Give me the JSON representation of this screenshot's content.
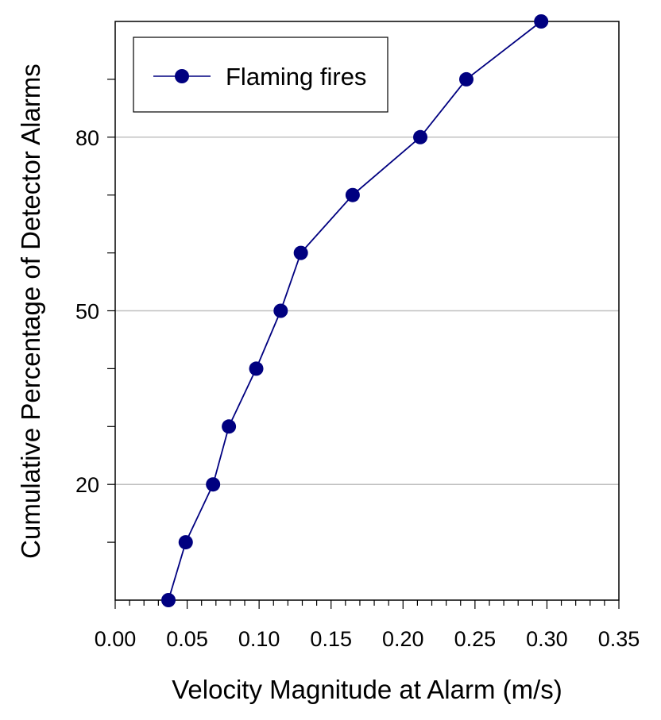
{
  "chart_data": {
    "type": "line",
    "title": "",
    "xlabel": "Velocity Magnitude at Alarm (m/s)",
    "ylabel": "Cumulative Percentage of Detector Alarms",
    "xlim": [
      0.0,
      0.35
    ],
    "ylim": [
      0,
      100
    ],
    "x_ticks": [
      0.0,
      0.05,
      0.1,
      0.15,
      0.2,
      0.25,
      0.3,
      0.35
    ],
    "x_tick_labels": [
      "0.00",
      "0.05",
      "0.10",
      "0.15",
      "0.20",
      "0.25",
      "0.30",
      "0.35"
    ],
    "x_minor_step": 0.01,
    "y_ticks": [
      20,
      50,
      80
    ],
    "y_tick_labels": [
      "20",
      "50",
      "80"
    ],
    "y_minor_ticks": [
      10,
      30,
      40,
      60,
      70,
      90
    ],
    "grid": "horizontal",
    "gridlines_y": [
      20,
      50,
      80
    ],
    "legend": {
      "position": "top-left",
      "entries": [
        "Flaming fires"
      ]
    },
    "series": [
      {
        "name": "Flaming fires",
        "color": "#000080",
        "marker": "circle",
        "x": [
          0.037,
          0.049,
          0.068,
          0.079,
          0.098,
          0.115,
          0.129,
          0.165,
          0.212,
          0.244,
          0.296
        ],
        "y": [
          0,
          10,
          20,
          30,
          40,
          50,
          60,
          70,
          80,
          90,
          100
        ]
      }
    ]
  }
}
